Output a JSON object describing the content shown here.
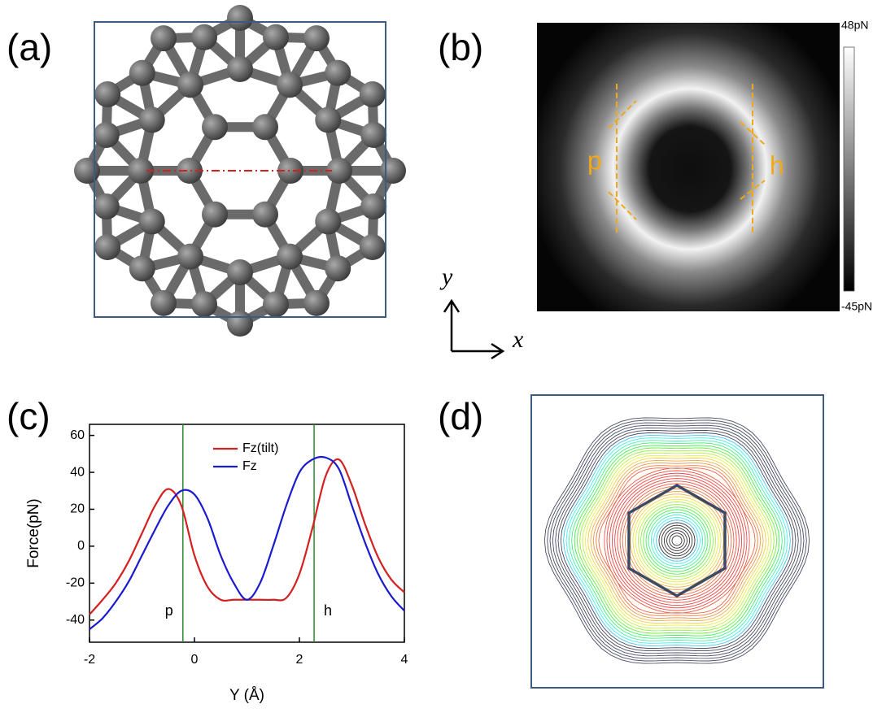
{
  "panels": {
    "a": {
      "label": "(a)"
    },
    "b": {
      "label": "(b)",
      "colorbar_max": "48pN",
      "colorbar_min": "-45pN",
      "marks": [
        "p",
        "h"
      ]
    },
    "c": {
      "label": "(c)"
    },
    "d": {
      "label": "(d)"
    }
  },
  "axes_indicator": {
    "y": "y",
    "x": "x"
  },
  "chart_data": {
    "type": "line",
    "xlabel": "Y (Å)",
    "ylabel": "Force(pN)",
    "x": [
      -2,
      -1.75,
      -1.5,
      -1.25,
      -1,
      -0.75,
      -0.5,
      -0.25,
      0,
      0.25,
      0.5,
      0.75,
      1,
      1.25,
      1.5,
      1.75,
      2,
      2.25,
      2.5,
      2.75,
      3,
      3.25,
      3.5,
      3.75,
      4
    ],
    "series": [
      {
        "name": "Fz(tilt)",
        "color": "#d42020",
        "values": [
          -37,
          -29,
          -20,
          -8,
          7,
          22,
          31,
          22,
          -5,
          -22,
          -29,
          -29,
          -29,
          -29,
          -29,
          -28,
          -15,
          10,
          38,
          47,
          33,
          12,
          -6,
          -18,
          -25
        ]
      },
      {
        "name": "Fz",
        "color": "#1a1ad0",
        "values": [
          -45,
          -39,
          -30,
          -19,
          -5,
          9,
          22,
          30,
          28,
          15,
          -5,
          -20,
          -29,
          -20,
          0,
          22,
          40,
          47,
          48,
          42,
          22,
          2,
          -15,
          -27,
          -35
        ]
      }
    ],
    "vlines": [
      {
        "x": -0.22,
        "label": "p"
      },
      {
        "x": 2.28,
        "label": "h"
      }
    ],
    "vline_color": "#2a8a2a",
    "xlim": [
      -2,
      4
    ],
    "xticks": [
      -2,
      0,
      2,
      4
    ],
    "ylim": [
      -52,
      66
    ],
    "yticks": [
      -40,
      -20,
      0,
      20,
      40,
      60
    ],
    "legend": "upper center"
  }
}
